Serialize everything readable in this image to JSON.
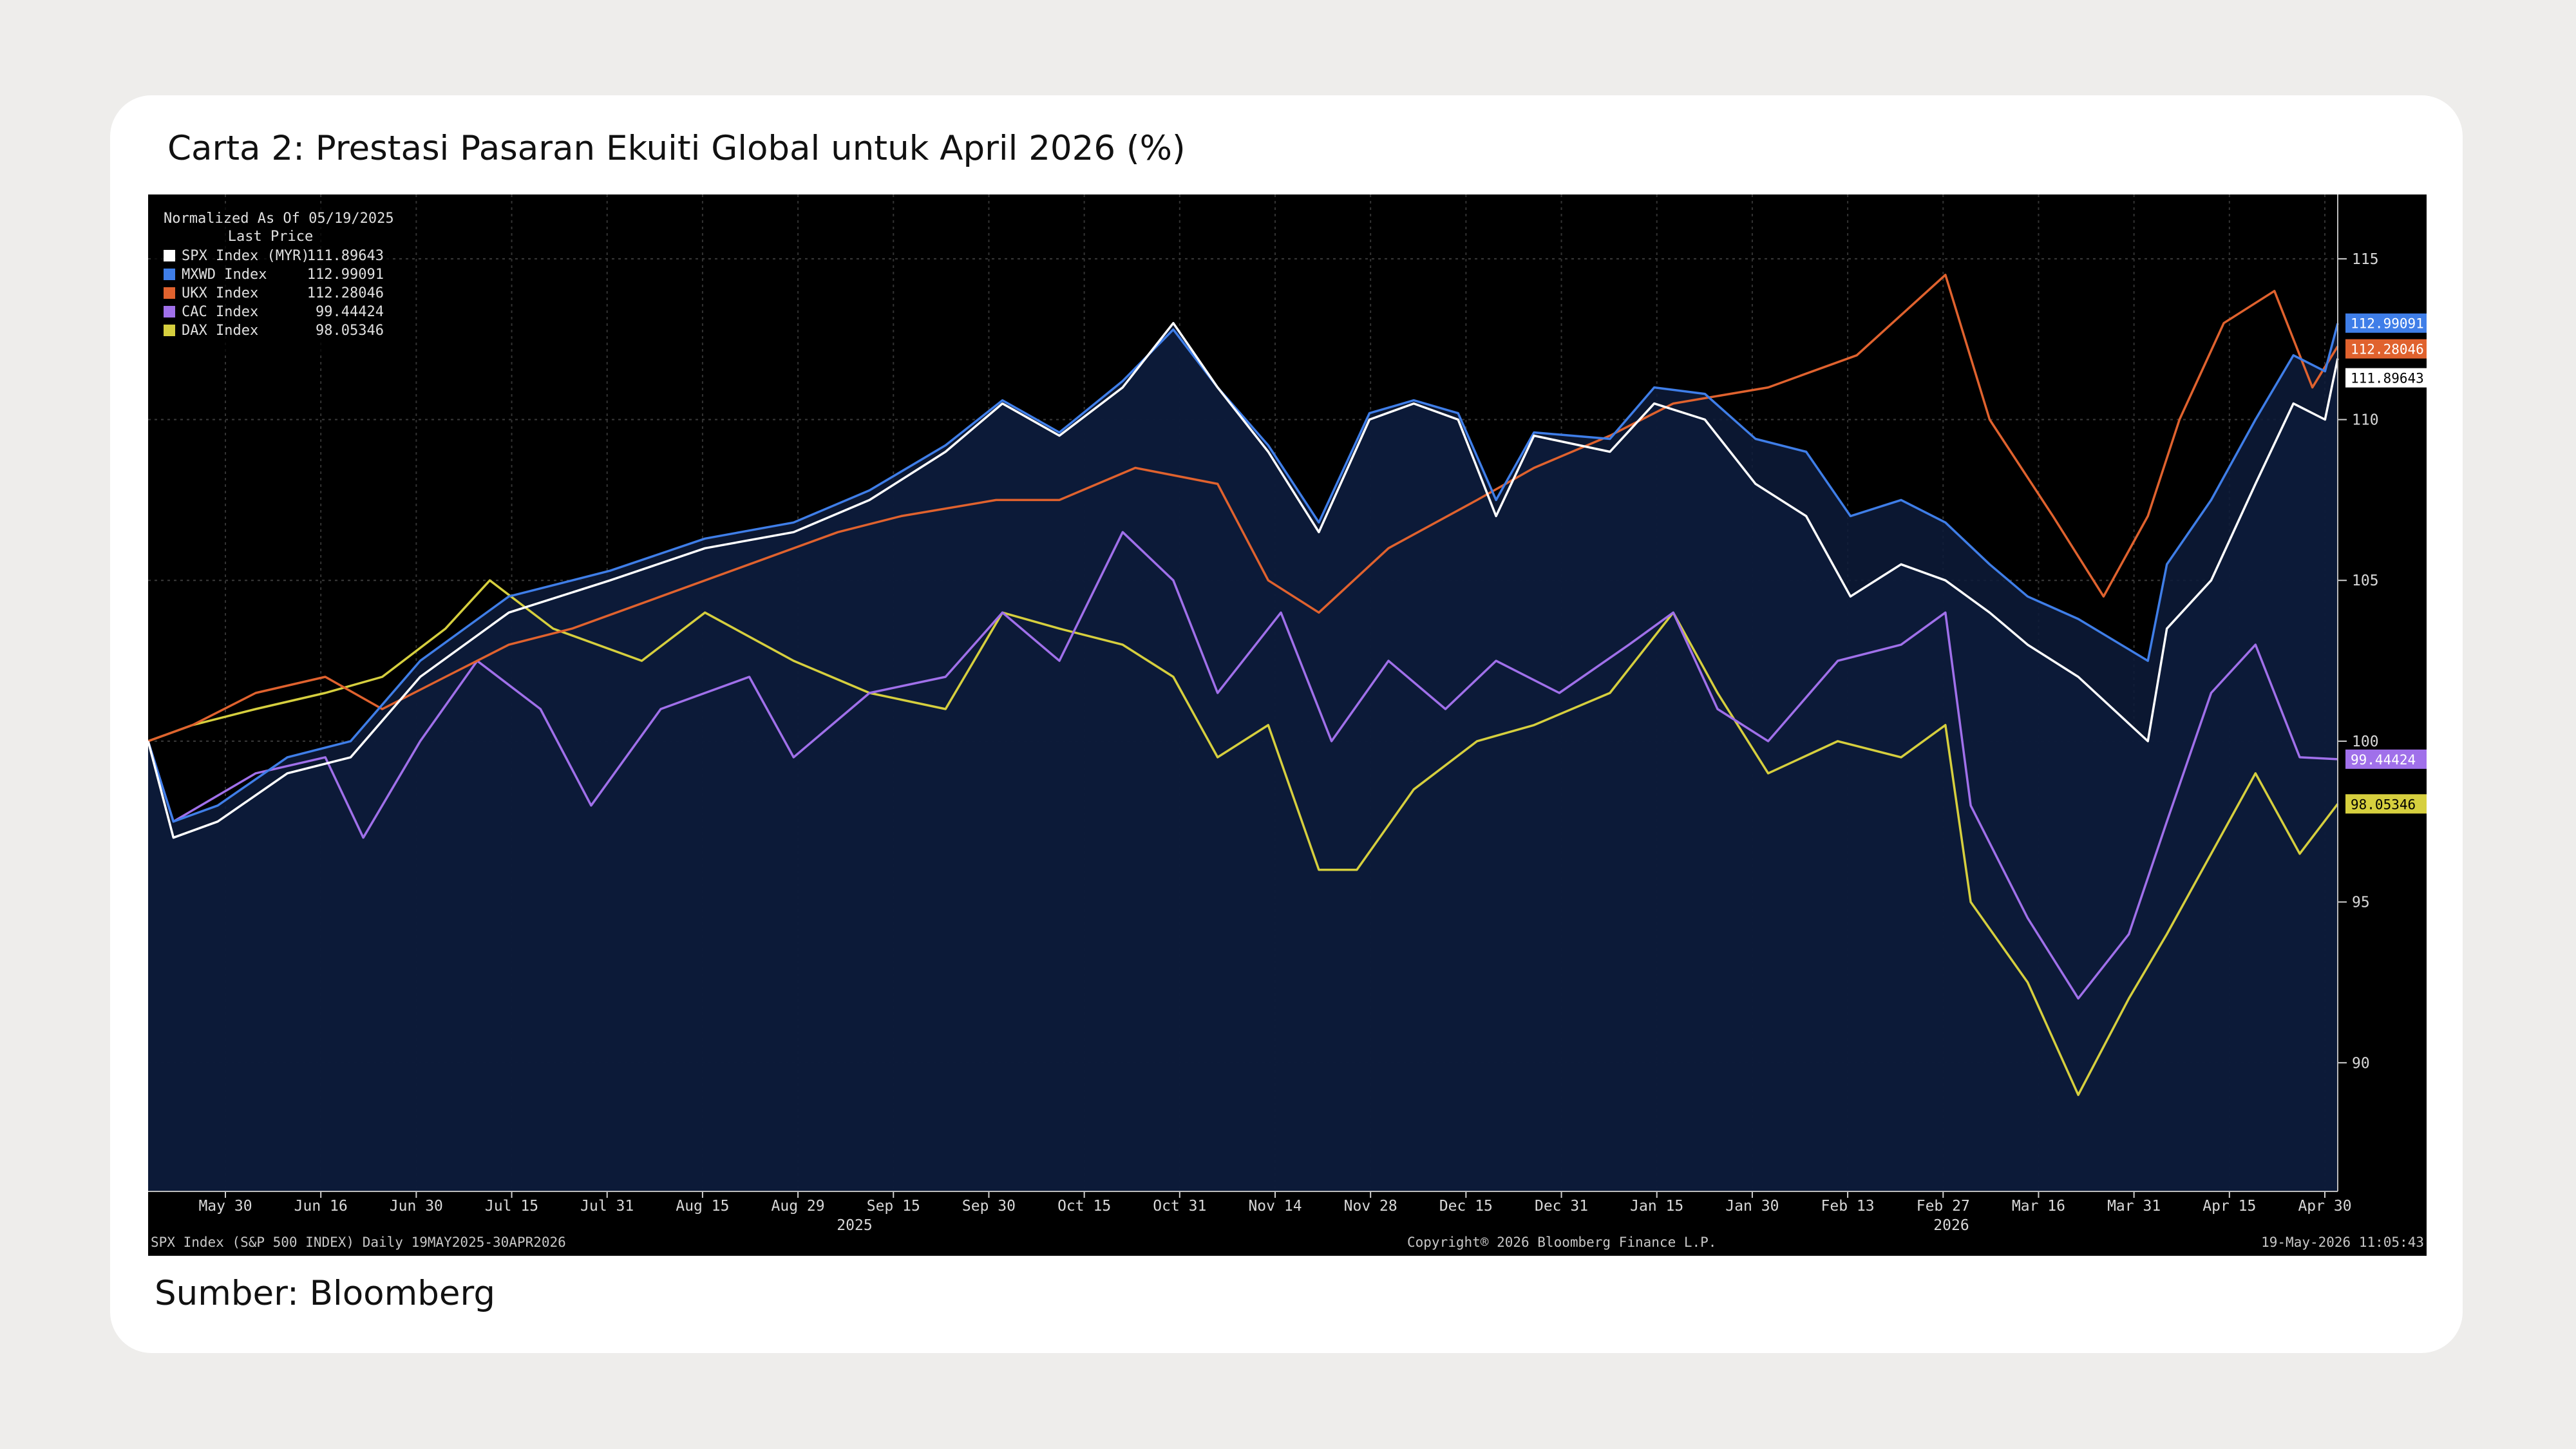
{
  "title": "Carta 2: Prestasi Pasaran Ekuiti Global untuk April 2026 (%)",
  "source": "Sumber: Bloomberg",
  "chart_data": {
    "type": "line",
    "legend": {
      "header": "Normalized As Of 05/19/2025",
      "subheader": "Last Price",
      "placement": "top-left"
    },
    "ylim": [
      86,
      117
    ],
    "yticks": [
      90,
      95,
      100,
      105,
      110,
      115
    ],
    "xticks": [
      "May 30",
      "Jun 16",
      "Jun 30",
      "Jul 15",
      "Jul 31",
      "Aug 15",
      "Aug 29",
      "Sep 15",
      "Sep 30",
      "Oct 15",
      "Oct 31",
      "Nov 14",
      "Nov 28",
      "Dec 15",
      "Dec 31",
      "Jan 15",
      "Jan 30",
      "Feb 13",
      "Feb 27",
      "Mar 16",
      "Mar 31",
      "Apr 15",
      "Apr 30"
    ],
    "year_labels": [
      "2025",
      "2026"
    ],
    "x_start": "2025-05-19",
    "x_end": "2026-04-30",
    "footer_left": "SPX Index (S&P 500 INDEX) Daily 19MAY2025-30APR2026",
    "footer_center": "Copyright® 2026 Bloomberg Finance L.P.",
    "footer_right": "19-May-2026 11:05:43",
    "grid": true,
    "series": [
      {
        "name": "SPX Index (MYR)",
        "last": "111.89643",
        "color": "#ffffff",
        "filled": true,
        "points": [
          [
            "2025-05-19",
            100
          ],
          [
            "2025-05-23",
            97
          ],
          [
            "2025-05-30",
            97.5
          ],
          [
            "2025-06-10",
            99
          ],
          [
            "2025-06-20",
            99.5
          ],
          [
            "2025-07-01",
            102
          ],
          [
            "2025-07-15",
            104
          ],
          [
            "2025-07-31",
            105
          ],
          [
            "2025-08-15",
            106
          ],
          [
            "2025-08-29",
            106.5
          ],
          [
            "2025-09-10",
            107.5
          ],
          [
            "2025-09-22",
            109
          ],
          [
            "2025-10-01",
            110.5
          ],
          [
            "2025-10-10",
            109.5
          ],
          [
            "2025-10-20",
            111
          ],
          [
            "2025-10-28",
            113
          ],
          [
            "2025-11-04",
            111
          ],
          [
            "2025-11-12",
            109
          ],
          [
            "2025-11-20",
            106.5
          ],
          [
            "2025-11-28",
            110
          ],
          [
            "2025-12-05",
            110.5
          ],
          [
            "2025-12-12",
            110
          ],
          [
            "2025-12-18",
            107
          ],
          [
            "2025-12-24",
            109.5
          ],
          [
            "2026-01-05",
            109
          ],
          [
            "2026-01-12",
            110.5
          ],
          [
            "2026-01-20",
            110
          ],
          [
            "2026-01-28",
            108
          ],
          [
            "2026-02-05",
            107
          ],
          [
            "2026-02-12",
            104.5
          ],
          [
            "2026-02-20",
            105.5
          ],
          [
            "2026-02-27",
            105
          ],
          [
            "2026-03-06",
            104
          ],
          [
            "2026-03-12",
            103
          ],
          [
            "2026-03-20",
            102
          ],
          [
            "2026-03-31",
            100
          ],
          [
            "2026-04-03",
            103.5
          ],
          [
            "2026-04-10",
            105
          ],
          [
            "2026-04-17",
            108
          ],
          [
            "2026-04-23",
            110.5
          ],
          [
            "2026-04-28",
            110
          ],
          [
            "2026-04-30",
            111.9
          ]
        ]
      },
      {
        "name": "MXWD Index",
        "last": "112.99091",
        "color": "#3f7ee8",
        "filled": true,
        "points": [
          [
            "2025-05-19",
            100
          ],
          [
            "2025-05-23",
            97.5
          ],
          [
            "2025-05-30",
            98
          ],
          [
            "2025-06-10",
            99.5
          ],
          [
            "2025-06-20",
            100
          ],
          [
            "2025-07-01",
            102.5
          ],
          [
            "2025-07-15",
            104.5
          ],
          [
            "2025-07-31",
            105.3
          ],
          [
            "2025-08-15",
            106.3
          ],
          [
            "2025-08-29",
            106.8
          ],
          [
            "2025-09-10",
            107.8
          ],
          [
            "2025-09-22",
            109.2
          ],
          [
            "2025-10-01",
            110.6
          ],
          [
            "2025-10-10",
            109.6
          ],
          [
            "2025-10-20",
            111.2
          ],
          [
            "2025-10-28",
            112.8
          ],
          [
            "2025-11-04",
            111
          ],
          [
            "2025-11-12",
            109.2
          ],
          [
            "2025-11-20",
            106.8
          ],
          [
            "2025-11-28",
            110.2
          ],
          [
            "2025-12-05",
            110.6
          ],
          [
            "2025-12-12",
            110.2
          ],
          [
            "2025-12-18",
            107.5
          ],
          [
            "2025-12-24",
            109.6
          ],
          [
            "2026-01-05",
            109.4
          ],
          [
            "2026-01-12",
            111
          ],
          [
            "2026-01-20",
            110.8
          ],
          [
            "2026-01-28",
            109.4
          ],
          [
            "2026-02-05",
            109
          ],
          [
            "2026-02-12",
            107
          ],
          [
            "2026-02-20",
            107.5
          ],
          [
            "2026-02-27",
            106.8
          ],
          [
            "2026-03-06",
            105.5
          ],
          [
            "2026-03-12",
            104.5
          ],
          [
            "2026-03-20",
            103.8
          ],
          [
            "2026-03-31",
            102.5
          ],
          [
            "2026-04-03",
            105.5
          ],
          [
            "2026-04-10",
            107.5
          ],
          [
            "2026-04-17",
            110
          ],
          [
            "2026-04-23",
            112
          ],
          [
            "2026-04-28",
            111.5
          ],
          [
            "2026-04-30",
            112.99
          ]
        ]
      },
      {
        "name": "UKX Index",
        "last": "112.28046",
        "color": "#e0622e",
        "filled": false,
        "points": [
          [
            "2025-05-19",
            100
          ],
          [
            "2025-05-26",
            100.5
          ],
          [
            "2025-06-05",
            101.5
          ],
          [
            "2025-06-16",
            102
          ],
          [
            "2025-06-25",
            101
          ],
          [
            "2025-07-05",
            102
          ],
          [
            "2025-07-15",
            103
          ],
          [
            "2025-07-25",
            103.5
          ],
          [
            "2025-08-08",
            104.5
          ],
          [
            "2025-08-22",
            105.5
          ],
          [
            "2025-09-05",
            106.5
          ],
          [
            "2025-09-15",
            107
          ],
          [
            "2025-09-30",
            107.5
          ],
          [
            "2025-10-10",
            107.5
          ],
          [
            "2025-10-22",
            108.5
          ],
          [
            "2025-11-04",
            108
          ],
          [
            "2025-11-12",
            105
          ],
          [
            "2025-11-20",
            104
          ],
          [
            "2025-12-01",
            106
          ],
          [
            "2025-12-15",
            107.5
          ],
          [
            "2025-12-24",
            108.5
          ],
          [
            "2026-01-05",
            109.5
          ],
          [
            "2026-01-15",
            110.5
          ],
          [
            "2026-01-30",
            111
          ],
          [
            "2026-02-13",
            112
          ],
          [
            "2026-02-27",
            114.5
          ],
          [
            "2026-03-06",
            110
          ],
          [
            "2026-03-16",
            107
          ],
          [
            "2026-03-24",
            104.5
          ],
          [
            "2026-03-31",
            107
          ],
          [
            "2026-04-05",
            110
          ],
          [
            "2026-04-12",
            113
          ],
          [
            "2026-04-20",
            114
          ],
          [
            "2026-04-26",
            111
          ],
          [
            "2026-04-30",
            112.28
          ]
        ]
      },
      {
        "name": "CAC Index",
        "last": "99.44424",
        "color": "#a070ea",
        "filled": false,
        "points": [
          [
            "2025-05-19",
            100
          ],
          [
            "2025-05-23",
            97.5
          ],
          [
            "2025-06-05",
            99
          ],
          [
            "2025-06-16",
            99.5
          ],
          [
            "2025-06-22",
            97
          ],
          [
            "2025-07-01",
            100
          ],
          [
            "2025-07-10",
            102.5
          ],
          [
            "2025-07-20",
            101
          ],
          [
            "2025-07-28",
            98
          ],
          [
            "2025-08-08",
            101
          ],
          [
            "2025-08-22",
            102
          ],
          [
            "2025-08-29",
            99.5
          ],
          [
            "2025-09-10",
            101.5
          ],
          [
            "2025-09-22",
            102
          ],
          [
            "2025-10-01",
            104
          ],
          [
            "2025-10-10",
            102.5
          ],
          [
            "2025-10-20",
            106.5
          ],
          [
            "2025-10-28",
            105
          ],
          [
            "2025-11-04",
            101.5
          ],
          [
            "2025-11-14",
            104
          ],
          [
            "2025-11-22",
            100
          ],
          [
            "2025-12-01",
            102.5
          ],
          [
            "2025-12-10",
            101
          ],
          [
            "2025-12-18",
            102.5
          ],
          [
            "2025-12-28",
            101.5
          ],
          [
            "2026-01-08",
            103
          ],
          [
            "2026-01-15",
            104
          ],
          [
            "2026-01-22",
            101
          ],
          [
            "2026-01-30",
            100
          ],
          [
            "2026-02-10",
            102.5
          ],
          [
            "2026-02-20",
            103
          ],
          [
            "2026-02-27",
            104
          ],
          [
            "2026-03-03",
            98
          ],
          [
            "2026-03-12",
            94.5
          ],
          [
            "2026-03-20",
            92
          ],
          [
            "2026-03-28",
            94
          ],
          [
            "2026-04-03",
            97.5
          ],
          [
            "2026-04-10",
            101.5
          ],
          [
            "2026-04-17",
            103
          ],
          [
            "2026-04-24",
            99.5
          ],
          [
            "2026-04-30",
            99.44
          ]
        ]
      },
      {
        "name": "DAX Index",
        "last": "98.05346",
        "color": "#d6cf3e",
        "filled": false,
        "points": [
          [
            "2025-05-19",
            100
          ],
          [
            "2025-05-26",
            100.5
          ],
          [
            "2025-06-05",
            101
          ],
          [
            "2025-06-16",
            101.5
          ],
          [
            "2025-06-25",
            102
          ],
          [
            "2025-07-05",
            103.5
          ],
          [
            "2025-07-12",
            105
          ],
          [
            "2025-07-22",
            103.5
          ],
          [
            "2025-08-05",
            102.5
          ],
          [
            "2025-08-15",
            104
          ],
          [
            "2025-08-29",
            102.5
          ],
          [
            "2025-09-10",
            101.5
          ],
          [
            "2025-09-22",
            101
          ],
          [
            "2025-10-01",
            104
          ],
          [
            "2025-10-10",
            103.5
          ],
          [
            "2025-10-20",
            103
          ],
          [
            "2025-10-28",
            102
          ],
          [
            "2025-11-04",
            99.5
          ],
          [
            "2025-11-12",
            100.5
          ],
          [
            "2025-11-20",
            96
          ],
          [
            "2025-11-26",
            96
          ],
          [
            "2025-12-05",
            98.5
          ],
          [
            "2025-12-15",
            100
          ],
          [
            "2025-12-24",
            100.5
          ],
          [
            "2026-01-05",
            101.5
          ],
          [
            "2026-01-15",
            104
          ],
          [
            "2026-01-22",
            101.5
          ],
          [
            "2026-01-30",
            99
          ],
          [
            "2026-02-10",
            100
          ],
          [
            "2026-02-20",
            99.5
          ],
          [
            "2026-02-27",
            100.5
          ],
          [
            "2026-03-03",
            95
          ],
          [
            "2026-03-12",
            92.5
          ],
          [
            "2026-03-20",
            89
          ],
          [
            "2026-03-28",
            92
          ],
          [
            "2026-04-03",
            94
          ],
          [
            "2026-04-10",
            96.5
          ],
          [
            "2026-04-17",
            99
          ],
          [
            "2026-04-24",
            96.5
          ],
          [
            "2026-04-30",
            98.05
          ]
        ]
      }
    ]
  }
}
